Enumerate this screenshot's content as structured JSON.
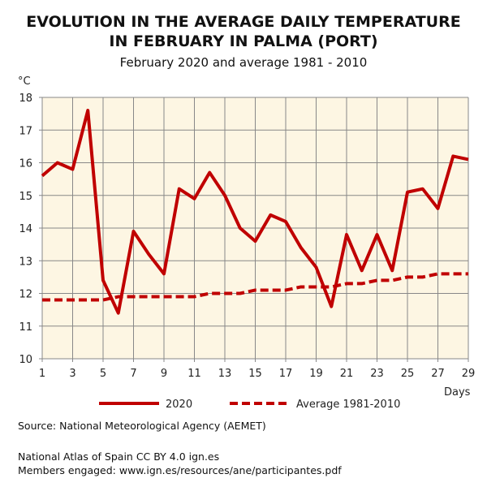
{
  "title_line1": "EVOLUTION IN THE AVERAGE DAILY TEMPERATURE",
  "title_line2": "IN FEBRUARY IN PALMA (PORT)",
  "subtitle": "February 2020 and average 1981 - 2010",
  "source": "Source: National Meteorological Agency (AEMET)",
  "atlas": "National Atlas of Spain CC BY 4.0 ign.es",
  "members": "Members engaged: www.ign.es/resources/ane/participantes.pdf",
  "chart_data": {
    "type": "line",
    "ylabel": "°C",
    "xlabel": "Days",
    "xlim": [
      1,
      29
    ],
    "ylim": [
      10,
      18
    ],
    "xticks": [
      1,
      3,
      5,
      7,
      9,
      11,
      13,
      15,
      17,
      19,
      21,
      23,
      25,
      27,
      29
    ],
    "yticks": [
      10,
      11,
      12,
      13,
      14,
      15,
      16,
      17,
      18
    ],
    "grid": true,
    "legend": "bottom",
    "x": [
      1,
      2,
      3,
      4,
      5,
      6,
      7,
      8,
      9,
      10,
      11,
      12,
      13,
      14,
      15,
      16,
      17,
      18,
      19,
      20,
      21,
      22,
      23,
      24,
      25,
      26,
      27,
      28,
      29
    ],
    "series": [
      {
        "name": "2020",
        "style": "solid",
        "color": "#c00000",
        "values": [
          15.6,
          16.0,
          15.8,
          17.6,
          12.4,
          11.4,
          13.9,
          13.2,
          12.6,
          15.2,
          14.9,
          15.7,
          15.0,
          14.0,
          13.6,
          14.4,
          14.2,
          13.4,
          12.8,
          11.6,
          13.8,
          12.7,
          13.8,
          12.7,
          15.1,
          15.2,
          14.6,
          16.2,
          16.1
        ]
      },
      {
        "name": "Average 1981-2010",
        "style": "dashed",
        "color": "#c00000",
        "values": [
          11.8,
          11.8,
          11.8,
          11.8,
          11.8,
          11.9,
          11.9,
          11.9,
          11.9,
          11.9,
          11.9,
          12.0,
          12.0,
          12.0,
          12.1,
          12.1,
          12.1,
          12.2,
          12.2,
          12.2,
          12.3,
          12.3,
          12.4,
          12.4,
          12.5,
          12.5,
          12.6,
          12.6,
          12.6
        ]
      }
    ],
    "background": "#fdf6e3"
  }
}
